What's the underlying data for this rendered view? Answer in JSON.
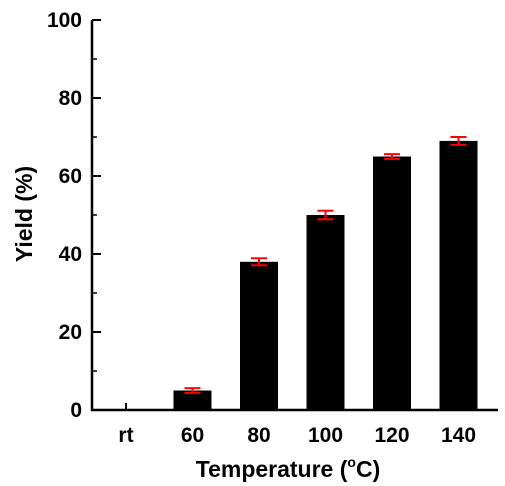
{
  "chart_data": {
    "type": "bar",
    "title": "",
    "xlabel": "Temperature (°C)",
    "xlabel_prefix": "Temperature (",
    "xlabel_superscript": "o",
    "xlabel_suffix": "C)",
    "ylabel": "Yield (%)",
    "categories": [
      "rt",
      "60",
      "80",
      "100",
      "120",
      "140"
    ],
    "values": [
      0,
      5,
      38,
      50,
      65,
      69
    ],
    "errors": [
      0,
      0.6,
      0.9,
      1.1,
      0.6,
      1.0
    ],
    "ylim": [
      0,
      100
    ],
    "yticks": [
      0,
      20,
      40,
      60,
      80,
      100
    ],
    "ytick_labels": [
      "0",
      "20",
      "40",
      "60",
      "80",
      "100"
    ],
    "grid": false,
    "legend": "none",
    "colors": {
      "bar": "#000000",
      "error_bar": "#ff0000",
      "axis": "#000000"
    }
  }
}
